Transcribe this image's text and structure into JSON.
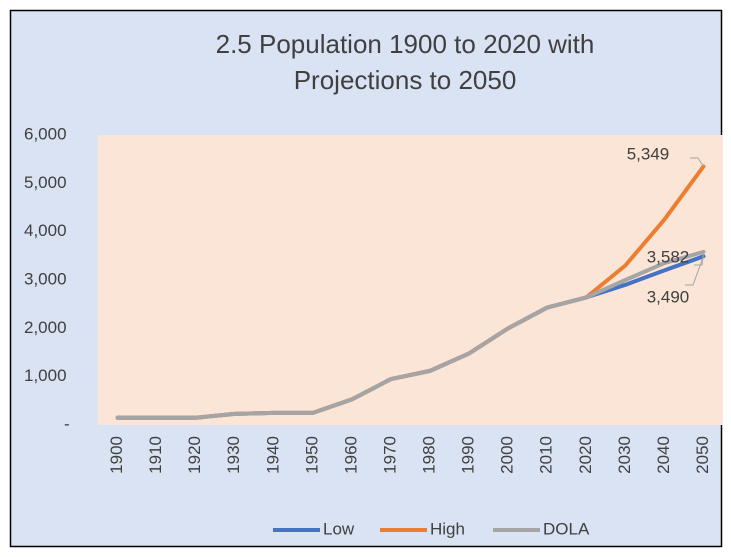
{
  "chart_data": {
    "type": "line",
    "title": "2.5 Population 1900 to 2020 with Projections to 2050",
    "categories": [
      "1900",
      "1910",
      "1920",
      "1930",
      "1940",
      "1950",
      "1960",
      "1970",
      "1980",
      "1990",
      "2000",
      "2010",
      "2020",
      "2030",
      "2040",
      "2050"
    ],
    "series": [
      {
        "name": "Low",
        "color": "#4472c4",
        "values": [
          150,
          150,
          150,
          230,
          250,
          250,
          530,
          950,
          1120,
          1480,
          2000,
          2430,
          2640,
          2900,
          3200,
          3490
        ],
        "value_labels": [
          null,
          null,
          null,
          null,
          null,
          null,
          null,
          null,
          null,
          null,
          null,
          null,
          null,
          null,
          null,
          "3,490"
        ]
      },
      {
        "name": "High",
        "color": "#ed7d31",
        "values": [
          150,
          150,
          150,
          230,
          250,
          250,
          530,
          950,
          1120,
          1480,
          2000,
          2430,
          2640,
          3300,
          4250,
          5349
        ],
        "value_labels": [
          null,
          null,
          null,
          null,
          null,
          null,
          null,
          null,
          null,
          null,
          null,
          null,
          null,
          null,
          null,
          "5,349"
        ]
      },
      {
        "name": "DOLA",
        "color": "#a5a5a5",
        "values": [
          150,
          150,
          150,
          230,
          250,
          250,
          530,
          950,
          1120,
          1480,
          2000,
          2430,
          2640,
          3000,
          3350,
          3582
        ],
        "value_labels": [
          null,
          null,
          null,
          null,
          null,
          null,
          null,
          null,
          null,
          null,
          null,
          null,
          null,
          null,
          null,
          "3,582"
        ]
      }
    ],
    "ylim": [
      0,
      6000
    ],
    "yticks": [
      {
        "value": 0,
        "label": "-"
      },
      {
        "value": 1000,
        "label": "1,000"
      },
      {
        "value": 2000,
        "label": "2,000"
      },
      {
        "value": 3000,
        "label": "3,000"
      },
      {
        "value": 4000,
        "label": "4,000"
      },
      {
        "value": 5000,
        "label": "5,000"
      },
      {
        "value": 6000,
        "label": "6,000"
      }
    ],
    "legend": "bottom"
  }
}
